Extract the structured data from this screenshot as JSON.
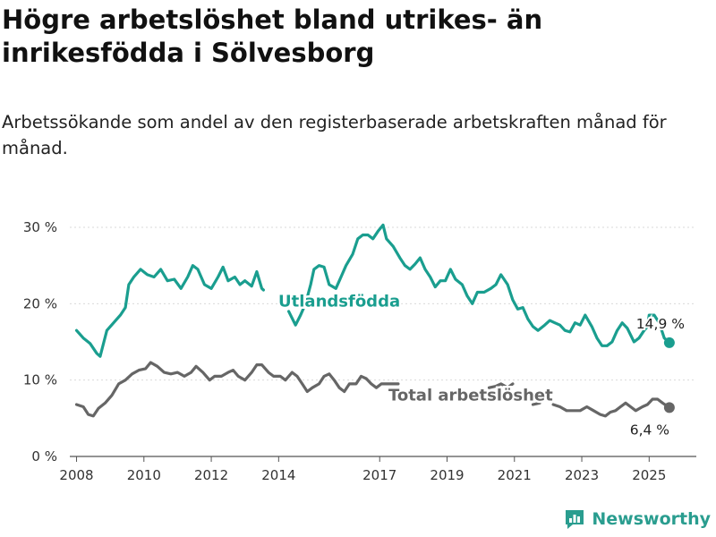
{
  "title": "Högre arbetslöshet bland utrikes- än inrikesfödda i Sölvesborg",
  "subtitle": "Arbetssökande som andel av den registerbaserade arbetskraften månad för månad.",
  "brand": {
    "name": "Newsworthy",
    "color": "#2a9d8f"
  },
  "chart_data": {
    "type": "line",
    "title": "Högre arbetslöshet bland utrikes- än inrikesfödda i Sölvesborg",
    "subtitle": "Arbetssökande som andel av den registerbaserade arbetskraften månad för månad.",
    "xlabel": "",
    "ylabel": "",
    "xlim": [
      2007.8,
      2026.4
    ],
    "ylim": [
      0,
      30
    ],
    "yticks": [
      0,
      10,
      20,
      30
    ],
    "ytick_labels": [
      "0 %",
      "10 %",
      "20 %",
      "30 %"
    ],
    "xticks": [
      2008,
      2010,
      2012,
      2014,
      2017,
      2019,
      2021,
      2023,
      2025
    ],
    "xtick_labels": [
      "2008",
      "2010",
      "2012",
      "2014",
      "2017",
      "2019",
      "2021",
      "2023",
      "2025"
    ],
    "grid": {
      "y": true,
      "x": false
    },
    "series": [
      {
        "name": "Utlandsfödda",
        "color": "#1a9e8f",
        "end_label": "14,9 %",
        "end_value": 14.9,
        "segments": [
          [
            [
              2008.0,
              16.5
            ],
            [
              2008.2,
              15.5
            ],
            [
              2008.4,
              14.8
            ],
            [
              2008.6,
              13.5
            ],
            [
              2008.7,
              13.1
            ],
            [
              2008.9,
              16.5
            ],
            [
              2009.1,
              17.5
            ],
            [
              2009.3,
              18.5
            ],
            [
              2009.45,
              19.5
            ],
            [
              2009.55,
              22.5
            ],
            [
              2009.7,
              23.5
            ],
            [
              2009.9,
              24.5
            ],
            [
              2010.1,
              23.8
            ],
            [
              2010.3,
              23.5
            ],
            [
              2010.5,
              24.5
            ],
            [
              2010.7,
              23.0
            ],
            [
              2010.9,
              23.2
            ],
            [
              2011.1,
              22.0
            ],
            [
              2011.3,
              23.5
            ],
            [
              2011.45,
              25.0
            ],
            [
              2011.6,
              24.5
            ],
            [
              2011.8,
              22.5
            ],
            [
              2012.0,
              22.0
            ],
            [
              2012.2,
              23.5
            ],
            [
              2012.35,
              24.8
            ],
            [
              2012.5,
              23.0
            ],
            [
              2012.7,
              23.5
            ],
            [
              2012.85,
              22.5
            ],
            [
              2013.0,
              23.0
            ],
            [
              2013.2,
              22.3
            ],
            [
              2013.35,
              24.2
            ],
            [
              2013.5,
              22.0
            ],
            [
              2013.55,
              21.8
            ]
          ],
          [
            [
              2014.3,
              19.0
            ],
            [
              2014.5,
              17.2
            ],
            [
              2014.65,
              18.5
            ],
            [
              2014.8,
              20.0
            ],
            [
              2014.95,
              22.5
            ],
            [
              2015.05,
              24.5
            ],
            [
              2015.2,
              25.0
            ],
            [
              2015.35,
              24.8
            ],
            [
              2015.5,
              22.5
            ],
            [
              2015.7,
              22.0
            ],
            [
              2015.85,
              23.5
            ],
            [
              2016.0,
              25.0
            ],
            [
              2016.2,
              26.5
            ],
            [
              2016.35,
              28.5
            ],
            [
              2016.5,
              29.0
            ],
            [
              2016.65,
              29.0
            ],
            [
              2016.8,
              28.5
            ],
            [
              2016.95,
              29.5
            ],
            [
              2017.1,
              30.3
            ],
            [
              2017.2,
              28.5
            ],
            [
              2017.4,
              27.5
            ],
            [
              2017.6,
              26.0
            ],
            [
              2017.75,
              25.0
            ],
            [
              2017.9,
              24.5
            ],
            [
              2018.05,
              25.2
            ],
            [
              2018.2,
              26.0
            ],
            [
              2018.35,
              24.5
            ],
            [
              2018.5,
              23.5
            ],
            [
              2018.65,
              22.2
            ],
            [
              2018.8,
              23.0
            ],
            [
              2018.95,
              23.0
            ],
            [
              2019.1,
              24.5
            ],
            [
              2019.25,
              23.2
            ],
            [
              2019.45,
              22.5
            ],
            [
              2019.6,
              21.0
            ],
            [
              2019.75,
              20.0
            ],
            [
              2019.9,
              21.5
            ],
            [
              2020.1,
              21.5
            ],
            [
              2020.3,
              22.0
            ],
            [
              2020.45,
              22.5
            ],
            [
              2020.6,
              23.8
            ],
            [
              2020.8,
              22.5
            ],
            [
              2020.95,
              20.5
            ],
            [
              2021.1,
              19.3
            ],
            [
              2021.25,
              19.5
            ],
            [
              2021.4,
              18.0
            ],
            [
              2021.55,
              17.0
            ],
            [
              2021.7,
              16.5
            ],
            [
              2021.9,
              17.2
            ],
            [
              2022.05,
              17.8
            ],
            [
              2022.2,
              17.5
            ],
            [
              2022.35,
              17.2
            ],
            [
              2022.5,
              16.5
            ],
            [
              2022.65,
              16.3
            ],
            [
              2022.8,
              17.5
            ],
            [
              2022.95,
              17.2
            ],
            [
              2023.1,
              18.5
            ],
            [
              2023.3,
              17.0
            ],
            [
              2023.45,
              15.5
            ],
            [
              2023.6,
              14.5
            ],
            [
              2023.75,
              14.5
            ],
            [
              2023.9,
              15.0
            ],
            [
              2024.05,
              16.5
            ],
            [
              2024.2,
              17.5
            ],
            [
              2024.35,
              16.8
            ],
            [
              2024.55,
              15.0
            ],
            [
              2024.7,
              15.5
            ],
            [
              2024.85,
              16.5
            ],
            [
              2024.95,
              17.0
            ],
            [
              2025.0,
              18.5
            ],
            [
              2025.15,
              18.5
            ],
            [
              2025.3,
              17.5
            ],
            [
              2025.45,
              15.5
            ],
            [
              2025.6,
              14.9
            ]
          ]
        ]
      },
      {
        "name": "Total arbetslöshet",
        "color": "#666666",
        "end_label": "6,4 %",
        "end_value": 6.4,
        "segments": [
          [
            [
              2008.0,
              6.8
            ],
            [
              2008.2,
              6.5
            ],
            [
              2008.35,
              5.5
            ],
            [
              2008.5,
              5.3
            ],
            [
              2008.65,
              6.3
            ],
            [
              2008.85,
              7.0
            ],
            [
              2009.05,
              8.0
            ],
            [
              2009.25,
              9.5
            ],
            [
              2009.45,
              10.0
            ],
            [
              2009.65,
              10.8
            ],
            [
              2009.85,
              11.3
            ],
            [
              2010.05,
              11.5
            ],
            [
              2010.2,
              12.3
            ],
            [
              2010.4,
              11.8
            ],
            [
              2010.6,
              11.0
            ],
            [
              2010.8,
              10.8
            ],
            [
              2011.0,
              11.0
            ],
            [
              2011.2,
              10.5
            ],
            [
              2011.4,
              11.0
            ],
            [
              2011.55,
              11.8
            ],
            [
              2011.75,
              11.0
            ],
            [
              2011.95,
              10.0
            ],
            [
              2012.1,
              10.5
            ],
            [
              2012.3,
              10.5
            ],
            [
              2012.5,
              11.0
            ],
            [
              2012.65,
              11.3
            ],
            [
              2012.8,
              10.5
            ],
            [
              2013.0,
              10.0
            ],
            [
              2013.2,
              11.0
            ],
            [
              2013.35,
              12.0
            ],
            [
              2013.5,
              12.0
            ],
            [
              2013.7,
              11.0
            ],
            [
              2013.85,
              10.5
            ],
            [
              2014.05,
              10.5
            ],
            [
              2014.2,
              10.0
            ],
            [
              2014.4,
              11.0
            ],
            [
              2014.55,
              10.5
            ],
            [
              2014.7,
              9.5
            ],
            [
              2014.85,
              8.5
            ],
            [
              2015.0,
              9.0
            ],
            [
              2015.2,
              9.5
            ],
            [
              2015.35,
              10.5
            ],
            [
              2015.5,
              10.8
            ],
            [
              2015.65,
              10.0
            ],
            [
              2015.8,
              9.0
            ],
            [
              2015.95,
              8.5
            ],
            [
              2016.1,
              9.5
            ],
            [
              2016.3,
              9.5
            ],
            [
              2016.45,
              10.5
            ],
            [
              2016.6,
              10.2
            ],
            [
              2016.75,
              9.5
            ],
            [
              2016.9,
              9.0
            ],
            [
              2017.05,
              9.5
            ],
            [
              2017.25,
              9.5
            ],
            [
              2017.45,
              9.5
            ],
            [
              2017.55,
              9.5
            ]
          ],
          [
            [
              2020.25,
              9.0
            ],
            [
              2020.45,
              9.2
            ],
            [
              2020.6,
              9.5
            ],
            [
              2020.8,
              9.0
            ],
            [
              2020.95,
              9.5
            ]
          ],
          [
            [
              2021.55,
              6.8
            ],
            [
              2021.75,
              7.0
            ]
          ],
          [
            [
              2022.15,
              6.8
            ],
            [
              2022.35,
              6.5
            ],
            [
              2022.55,
              6.0
            ],
            [
              2022.75,
              6.0
            ],
            [
              2022.95,
              6.0
            ],
            [
              2023.15,
              6.5
            ],
            [
              2023.35,
              6.0
            ],
            [
              2023.55,
              5.5
            ],
            [
              2023.7,
              5.3
            ],
            [
              2023.85,
              5.8
            ],
            [
              2024.0,
              6.0
            ],
            [
              2024.15,
              6.5
            ],
            [
              2024.3,
              7.0
            ],
            [
              2024.45,
              6.5
            ],
            [
              2024.6,
              6.0
            ],
            [
              2024.8,
              6.5
            ],
            [
              2024.95,
              6.8
            ],
            [
              2025.1,
              7.5
            ],
            [
              2025.25,
              7.5
            ],
            [
              2025.4,
              7.0
            ],
            [
              2025.6,
              6.4
            ]
          ]
        ]
      }
    ]
  }
}
